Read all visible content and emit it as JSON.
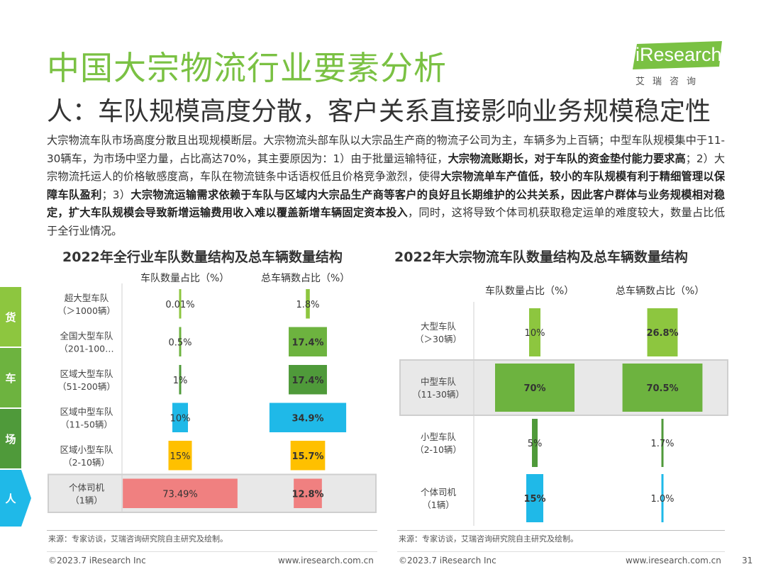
{
  "page": {
    "title": "中国大宗物流行业要素分析",
    "subtitle": "人：车队规模高度分散，客户关系直接影响业务规模稳定性",
    "logo_text": "iResearch",
    "logo_sub": "艾瑞咨询",
    "paragraph": [
      {
        "t": "大宗物流车队市场高度分散且出现规模断层。大宗物流头部车队以大宗品生产商的物流子公司为主，车辆多为上百辆；中型车队规模集中于11-30辆车，为市场中坚力量，占比高达70%，其主要原因为：1）由于批量运输特征，",
        "b": false
      },
      {
        "t": "大宗物流账期长，对于车队的资金垫付能力要求高",
        "b": true
      },
      {
        "t": "；2）大宗物流托运人的价格敏感度高，车队在物流链条中话语权低且价格竞争激烈，使得",
        "b": false
      },
      {
        "t": "大宗物流单车产值低，较小的车队规模有利于精细管理以保障车队盈利",
        "b": true
      },
      {
        "t": "；3）",
        "b": false
      },
      {
        "t": "大宗物流运输需求依赖于车队与区域内大宗品生产商等客户的良好且长期维护的公共关系，因此客户群体与业务规模相对稳定，扩大车队规模会导致新增运输费用收入难以覆盖新增车辆固定资本投入",
        "b": true
      },
      {
        "t": "，同时，这将导致个体司机获取稳定运单的难度较大，数量占比低于全行业情况。",
        "b": false
      }
    ],
    "side_tabs": [
      "货",
      "车",
      "场",
      "人"
    ],
    "source": "来源：专家访谈，艾瑞咨询研究院自主研究及绘制。",
    "footer_left": "©2023.7 iResearch Inc",
    "footer_right": "www.iresearch.com.cn",
    "page_number": "31",
    "colors": {
      "brand_green": "#7ac143",
      "tab_green1": "#8dc63f",
      "tab_green2": "#6db33f",
      "tab_green3": "#4f9a3a",
      "tab_blue": "#1fb9e8"
    }
  },
  "chart_data": [
    {
      "type": "bar",
      "orientation": "centered-horizontal",
      "title": "2022年全行业车队数量结构及总车辆数量结构",
      "highlight_category": "个体司机（1辆）",
      "categories": [
        "超大型车队（＞1000辆）",
        "全国大型车队（201-100…",
        "区域大型车队（51-200辆）",
        "区域中型车队（11-50辆）",
        "区域小型车队（2-10辆）",
        "个体司机（1辆）"
      ],
      "category_lines": [
        [
          "超大型车队",
          "（＞1000辆）"
        ],
        [
          "全国大型车队",
          "（201-100…"
        ],
        [
          "区域大型车队",
          "（51-200辆）"
        ],
        [
          "区域中型车队",
          "（11-50辆）"
        ],
        [
          "区域小型车队",
          "（2-10辆）"
        ],
        [
          "个体司机",
          "（1辆）"
        ]
      ],
      "colors": [
        "#8dc63f",
        "#6db33f",
        "#4f9a3a",
        "#1fb9e8",
        "#ffc000",
        "#f08080"
      ],
      "series": [
        {
          "name": "车队数量占比（%）",
          "values": [
            0.01,
            0.5,
            1,
            10,
            15,
            73.49
          ],
          "labels": [
            "0.01%",
            "0.5%",
            "1%",
            "10%",
            "15%",
            "73.49%"
          ]
        },
        {
          "name": "总车辆数占比（%）",
          "values": [
            1.8,
            17.4,
            17.4,
            34.9,
            15.7,
            12.8
          ],
          "labels": [
            "1.8%",
            "17.4%",
            "17.4%",
            "34.9%",
            "15.7%",
            "12.8%"
          ]
        }
      ]
    },
    {
      "type": "bar",
      "orientation": "centered-horizontal",
      "title": "2022年大宗物流车队数量结构及总车辆数量结构",
      "highlight_category": "中型车队（11-30辆）",
      "categories": [
        "大型车队（＞30辆）",
        "中型车队（11-30辆）",
        "小型车队（2-10辆）",
        "个体司机（1辆）"
      ],
      "category_lines": [
        [
          "大型车队",
          "（＞30辆）"
        ],
        [
          "中型车队",
          "（11-30辆）"
        ],
        [
          "小型车队",
          "（2-10辆）"
        ],
        [
          "个体司机",
          "（1辆）"
        ]
      ],
      "colors": [
        "#8dc63f",
        "#6db33f",
        "#4f9a3a",
        "#1fb9e8"
      ],
      "series": [
        {
          "name": "车队数量占比（%）",
          "values": [
            10,
            70,
            5,
            15
          ],
          "labels": [
            "10%",
            "70%",
            "5%",
            "15%"
          ]
        },
        {
          "name": "总车辆数占比（%）",
          "values": [
            26.8,
            70.5,
            1.7,
            1.0
          ],
          "labels": [
            "26.8%",
            "70.5%",
            "1.7%",
            "1.0%"
          ]
        }
      ]
    }
  ]
}
